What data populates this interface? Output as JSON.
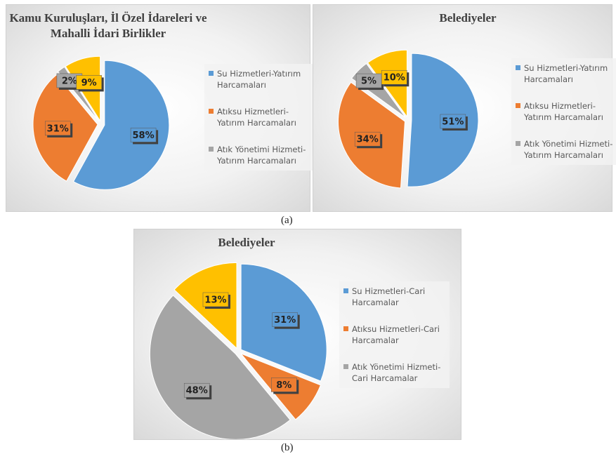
{
  "chart_data": [
    {
      "type": "pie",
      "title": "Kamu Kuruluşları, İl Özel İdareleri ve Mahalli İdari Birlikler",
      "categories": [
        "Su Hizmetleri-Yatırım Harcamaları",
        "Atıksu Hizmetleri-Yatırım Harcamaları",
        "Atık Yönetimi Hizmeti-Yatırım Harcamaları",
        null
      ],
      "values": [
        58,
        31,
        2,
        9
      ],
      "value_labels": [
        "58%",
        "31%",
        "2%",
        "9%"
      ],
      "colors": [
        "#5b9bd5",
        "#ed7d31",
        "#a5a5a5",
        "#ffc000"
      ],
      "legend": "right"
    },
    {
      "type": "pie",
      "title": "Belediyeler",
      "categories": [
        "Su Hizmetleri-Yatırım Harcamaları",
        "Atıksu Hizmetleri-Yatırım Harcamaları",
        "Atık Yönetimi Hizmeti-Yatırım Harcamaları",
        null
      ],
      "values": [
        51,
        34,
        5,
        10
      ],
      "value_labels": [
        "51%",
        "34%",
        "5%",
        "10%"
      ],
      "colors": [
        "#5b9bd5",
        "#ed7d31",
        "#a5a5a5",
        "#ffc000"
      ],
      "legend": "right"
    },
    {
      "type": "pie",
      "title": "Belediyeler",
      "categories": [
        "Su Hizmetleri-Cari Harcamalar",
        "Atıksu Hizmetleri-Cari Harcamalar",
        "Atık Yönetimi Hizmeti-Cari Harcamalar",
        null
      ],
      "values": [
        31,
        8,
        48,
        13
      ],
      "value_labels": [
        "31%",
        "8%",
        "48%",
        "13%"
      ],
      "colors": [
        "#5b9bd5",
        "#ed7d31",
        "#a5a5a5",
        "#ffc000"
      ],
      "legend": "right"
    }
  ],
  "captions": [
    "(a)",
    "(b)"
  ]
}
